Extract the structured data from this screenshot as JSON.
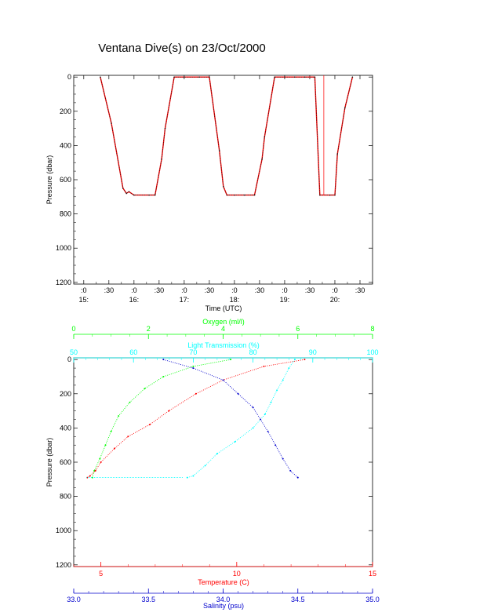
{
  "chart_data": [
    {
      "type": "line",
      "title": "Ventana Dive(s) on 23/Oct/2000",
      "xlabel": "Time (UTC)",
      "ylabel": "Pressure (dbar)",
      "x_ticks": [
        ":0",
        ":30",
        ":0",
        ":30",
        ":0",
        ":30",
        ":0",
        ":30",
        ":0",
        ":30",
        ":0",
        ":30"
      ],
      "x_hour_labels": [
        "15:",
        "16:",
        "17:",
        "18:",
        "19:",
        "20:"
      ],
      "y_ticks": [
        "0",
        "200",
        "400",
        "600",
        "800",
        "1000",
        "1200"
      ],
      "xlim_hours": [
        14.8,
        20.75
      ],
      "ylim": [
        1210,
        -10
      ],
      "grid": false,
      "colors": {
        "trace": "#1a1a1a",
        "overlay": "#ff0000",
        "axes": "#000000"
      },
      "series": [
        {
          "x": [
            15.33,
            15.55,
            15.78,
            15.85,
            15.9,
            16.0,
            16.3,
            16.42,
            16.55,
            16.62,
            16.8,
            17.0,
            17.3,
            17.5,
            17.7,
            17.78,
            17.85,
            18.0,
            18.2,
            18.4,
            18.55,
            18.6,
            18.8,
            19.0,
            19.2,
            19.4,
            19.6,
            19.7,
            19.9,
            20.0,
            20.05,
            20.2,
            20.35
          ],
          "y": [
            0,
            270,
            650,
            680,
            670,
            690,
            690,
            690,
            480,
            300,
            0,
            0,
            0,
            0,
            430,
            640,
            690,
            690,
            690,
            690,
            480,
            350,
            0,
            0,
            0,
            0,
            0,
            690,
            690,
            690,
            450,
            180,
            0
          ]
        }
      ],
      "overlay_vline_hours": 19.78
    },
    {
      "type": "scatter",
      "ylabel": "Pressure (dbar)",
      "y_ticks": [
        "0",
        "200",
        "400",
        "600",
        "800",
        "1000",
        "1200"
      ],
      "ylim": [
        1210,
        -10
      ],
      "grid": false,
      "axes": [
        {
          "label": "Oxygen (ml/l)",
          "position": "top",
          "ticks": [
            "0",
            "2",
            "4",
            "6",
            "8"
          ],
          "range": [
            0,
            8
          ],
          "color": "#00ff00"
        },
        {
          "label": "Light Transmission (%)",
          "position": "top",
          "ticks": [
            "50",
            "60",
            "70",
            "80",
            "90",
            "100"
          ],
          "range": [
            50,
            100
          ],
          "color": "#00ffff"
        },
        {
          "label": "Temperature (C)",
          "position": "bottom",
          "ticks": [
            "5",
            "10",
            "15"
          ],
          "range": [
            4.0,
            15.0
          ],
          "color": "#ff0000"
        },
        {
          "label": "Salinity (psu)",
          "position": "bottom",
          "ticks": [
            "33.0",
            "33.5",
            "34.0",
            "34.5",
            "35.0"
          ],
          "range": [
            33.0,
            35.0
          ],
          "color": "#0000cd"
        }
      ],
      "series": [
        {
          "variable": "oxygen",
          "color": "#00ff00",
          "x": [
            4.2,
            3.2,
            2.4,
            1.9,
            1.5,
            1.2,
            1.0,
            0.85,
            0.7,
            0.55,
            0.5
          ],
          "y": [
            0,
            40,
            100,
            170,
            250,
            330,
            420,
            500,
            580,
            650,
            690
          ]
        },
        {
          "variable": "light_transmission",
          "color": "#00ffff",
          "x": [
            87,
            86,
            85,
            84,
            83,
            82,
            80,
            77,
            74,
            72,
            70,
            69
          ],
          "y": [
            0,
            50,
            120,
            180,
            250,
            320,
            400,
            480,
            550,
            620,
            680,
            690
          ]
        },
        {
          "variable": "temperature",
          "color": "#ff0000",
          "x": [
            12.5,
            11.0,
            9.5,
            8.5,
            7.5,
            6.8,
            6.0,
            5.5,
            5.0,
            4.8,
            4.6,
            4.5
          ],
          "y": [
            0,
            40,
            120,
            200,
            300,
            380,
            450,
            520,
            600,
            650,
            680,
            690
          ]
        },
        {
          "variable": "salinity",
          "color": "#0000cd",
          "x": [
            33.6,
            33.8,
            34.0,
            34.1,
            34.2,
            34.25,
            34.3,
            34.35,
            34.4,
            34.45,
            34.5
          ],
          "y": [
            0,
            50,
            120,
            200,
            280,
            350,
            420,
            500,
            580,
            650,
            690
          ]
        }
      ]
    }
  ]
}
